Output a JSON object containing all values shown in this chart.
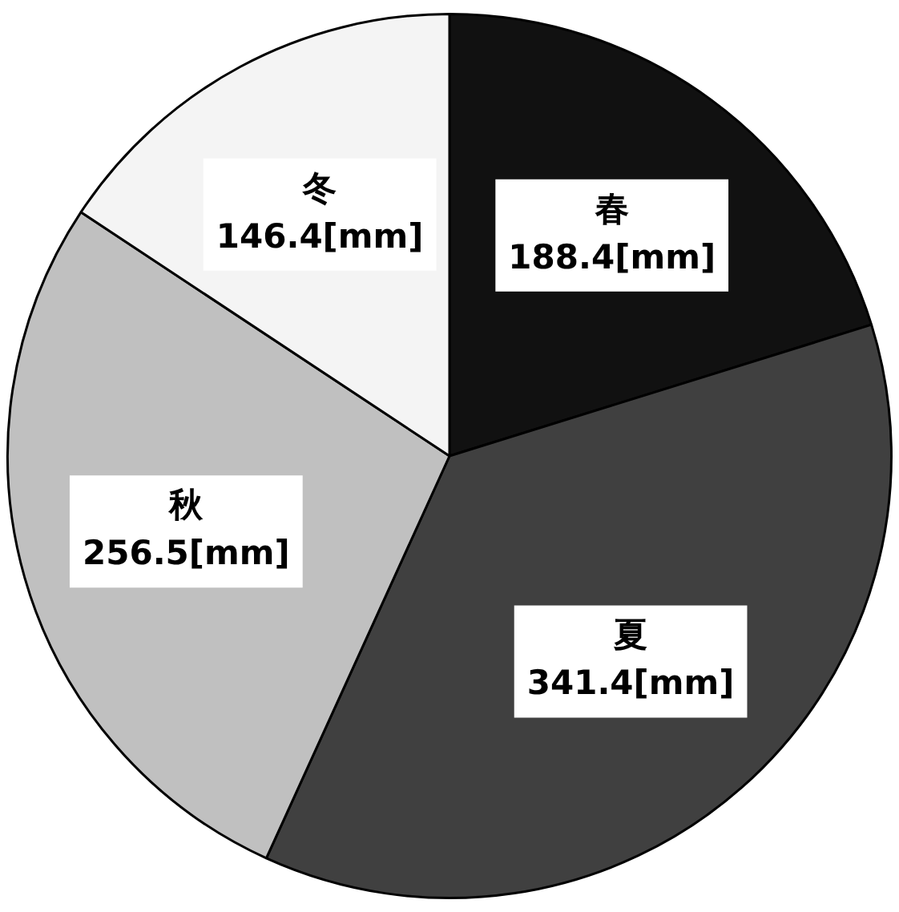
{
  "chart_data": {
    "type": "pie",
    "categories": [
      "春",
      "夏",
      "秋",
      "冬"
    ],
    "values": [
      188.4,
      341.4,
      256.5,
      146.4
    ],
    "value_labels": [
      "188.4[mm]",
      "341.4[mm]",
      "256.5[mm]",
      "146.4[mm]"
    ],
    "colors": [
      "#111111",
      "#404040",
      "#c0c0c0",
      "#f4f4f4"
    ]
  }
}
